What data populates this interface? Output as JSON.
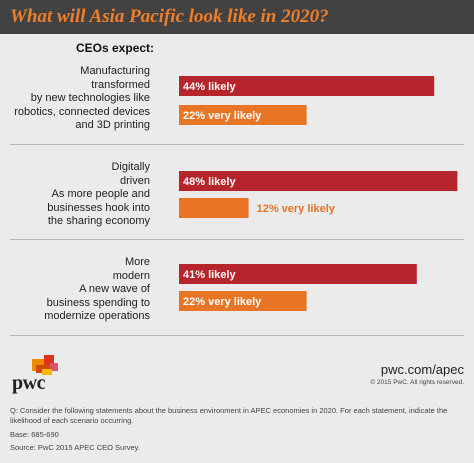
{
  "title": "What will Asia Pacific look like in 2020?",
  "subhead": "CEOs expect:",
  "colors": {
    "header_bg": "#424242",
    "title": "#ef7e2a",
    "likely": "#b5252b",
    "very_likely": "#e87426",
    "bg": "#ebebeb"
  },
  "chart_data": {
    "type": "bar",
    "orientation": "horizontal",
    "xlim": [
      0,
      50
    ],
    "categories": [
      {
        "name": "Manufacturing transformed",
        "lines": [
          "Manufacturing",
          "transformed",
          "by new technologies like",
          "robotics, connected devices",
          "and 3D printing"
        ]
      },
      {
        "name": "Digitally driven",
        "lines": [
          "Digitally",
          "driven",
          "As more people and",
          "businesses hook into",
          "the sharing economy"
        ]
      },
      {
        "name": "More modern",
        "lines": [
          "More",
          "modern",
          "A new wave of",
          "business spending to",
          "modernize operations"
        ]
      }
    ],
    "series": [
      {
        "name": "likely",
        "values": [
          44,
          48,
          41
        ],
        "labels": [
          "44% likely",
          "48% likely",
          "41% likely"
        ]
      },
      {
        "name": "very likely",
        "values": [
          22,
          12,
          22
        ],
        "labels": [
          "22% very likely",
          "12% very likely",
          "22% very likely"
        ]
      }
    ]
  },
  "footer": {
    "logo_text": "pwc",
    "url": "pwc.com/apec",
    "copyright": "© 2015 PwC. All rights reserved.",
    "question": "Q: Consider the following statements about the business environment in APEC economies in 2020. For each statement, indicate the likelihood of each scenario occurring.",
    "base": "Base: 685-690",
    "source": "Source: PwC 2015 APEC CEO Survey."
  }
}
